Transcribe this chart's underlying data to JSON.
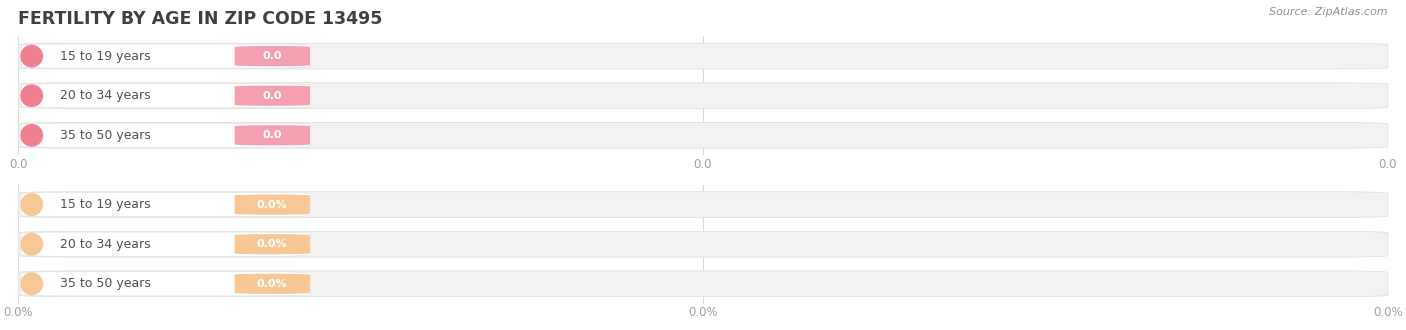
{
  "title": "FERTILITY BY AGE IN ZIP CODE 13495",
  "source_text": "Source: ZipAtlas.com",
  "top_categories": [
    "15 to 19 years",
    "20 to 34 years",
    "35 to 50 years"
  ],
  "bottom_categories": [
    "15 to 19 years",
    "20 to 34 years",
    "35 to 50 years"
  ],
  "top_value_labels": [
    "0.0",
    "0.0",
    "0.0"
  ],
  "bottom_value_labels": [
    "0.0%",
    "0.0%",
    "0.0%"
  ],
  "top_xlabel_labels": [
    "0.0",
    "0.0",
    "0.0"
  ],
  "bottom_xlabel_labels": [
    "0.0%",
    "0.0%",
    "0.0%"
  ],
  "top_circle_color": "#f08090",
  "top_badge_color": "#f4a0b0",
  "bottom_circle_color": "#f5c896",
  "bottom_badge_color": "#f5c896",
  "bar_bg_color": "#f2f2f2",
  "bar_edge_color": "#e0e0e0",
  "title_color": "#404040",
  "source_color": "#909090",
  "tick_color": "#a0a0a0",
  "label_color": "#505050",
  "badge_text_color": "#ffffff",
  "background_color": "#ffffff",
  "grid_color": "#d8d8d8"
}
